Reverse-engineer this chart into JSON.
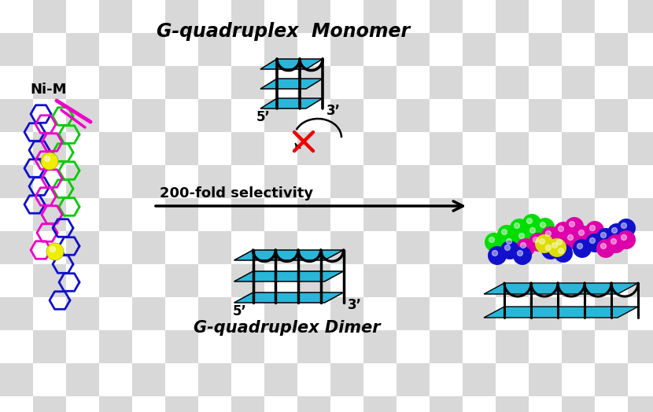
{
  "title": "G-quadruplex  Monomer",
  "dimer_label": "G-quadruplex Dimer",
  "ni_m_label": "Ni-M",
  "selectivity_label": "200-fold selectivity",
  "five_prime": "5’",
  "three_prime": "3’",
  "bg_checker_color1": "#ffffff",
  "bg_checker_color2": "#d8d8d8",
  "checker_size": 42,
  "cyan_color": "#29b6d8",
  "black_color": "#000000",
  "red_color": "#ee0000",
  "green_color": "#00cc00",
  "magenta_color": "#ee00cc",
  "blue_color": "#1111cc",
  "yellow_color": "#eeee00",
  "figw": 8.3,
  "figh": 5.24
}
